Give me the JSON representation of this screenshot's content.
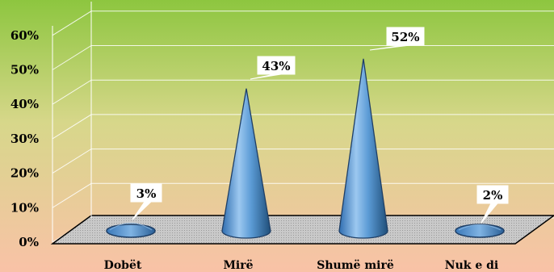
{
  "chart_data": {
    "type": "bar",
    "style": "3d-cone",
    "categories": [
      "Dobët",
      "Mirë",
      "Shumë mirë",
      "Nuk e di"
    ],
    "values": [
      3,
      43,
      52,
      2
    ],
    "value_labels": [
      "3%",
      "43%",
      "52%",
      "2%"
    ],
    "y_ticks": [
      "0%",
      "10%",
      "20%",
      "30%",
      "40%",
      "50%",
      "60%"
    ],
    "ylim": [
      0,
      65
    ],
    "grid": true,
    "title": "",
    "xlabel": "",
    "ylabel": "",
    "colors": {
      "cone": "#5b9bd5",
      "cone_dark": "#1f4e79",
      "floor": "#b7b7b7",
      "background_top": "#92d050",
      "background_bottom": "#f8cbad"
    }
  }
}
